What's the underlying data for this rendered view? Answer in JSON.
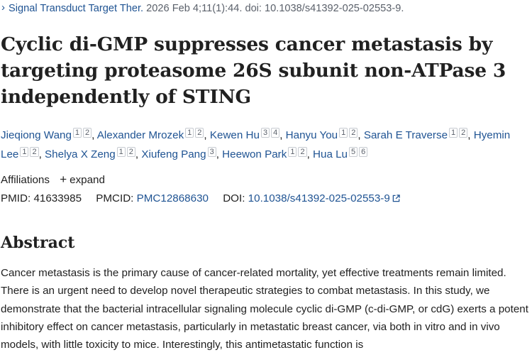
{
  "citation": {
    "journal": "Signal Transduct Target Ther.",
    "details": "2026 Feb 4;11(1):44. doi: 10.1038/s41392-025-02553-9."
  },
  "title": "Cyclic di-GMP suppresses cancer metastasis by targeting proteasome 26S subunit non-ATPase 3 independently of STING",
  "authors": [
    {
      "name": "Jieqiong Wang",
      "affs": [
        "1",
        "2"
      ]
    },
    {
      "name": "Alexander Mrozek",
      "affs": [
        "1",
        "2"
      ]
    },
    {
      "name": "Kewen Hu",
      "affs": [
        "3",
        "4"
      ]
    },
    {
      "name": "Hanyu You",
      "affs": [
        "1",
        "2"
      ]
    },
    {
      "name": "Sarah E Traverse",
      "affs": [
        "1",
        "2"
      ]
    },
    {
      "name": "Hyemin Lee",
      "affs": [
        "1",
        "2"
      ]
    },
    {
      "name": "Shelya X Zeng",
      "affs": [
        "1",
        "2"
      ]
    },
    {
      "name": "Xiufeng Pang",
      "affs": [
        "3"
      ]
    },
    {
      "name": "Heewon Park",
      "affs": [
        "1",
        "2"
      ]
    },
    {
      "name": "Hua Lu",
      "affs": [
        "5",
        "6"
      ]
    }
  ],
  "affiliations": {
    "label": "Affiliations",
    "expand": "expand"
  },
  "ids": {
    "pmid_label": "PMID:",
    "pmid": "41633985",
    "pmcid_label": "PMCID:",
    "pmcid": "PMC12868630",
    "doi_label": "DOI:",
    "doi": "10.1038/s41392-025-02553-9"
  },
  "abstract": {
    "heading": "Abstract",
    "text": "Cancer metastasis is the primary cause of cancer-related mortality, yet effective treatments remain limited. There is an urgent need to develop novel therapeutic strategies to combat metastasis. In this study, we demonstrate that the bacterial intracellular signaling molecule cyclic di-GMP (c-di-GMP, or cdG) exerts a potent inhibitory effect on cancer metastasis, particularly in metastatic breast cancer, via both in vitro and in vivo models, with little toxicity to mice. Interestingly, this antimetastatic function is"
  },
  "colors": {
    "link": "#205493",
    "text": "#212121",
    "muted": "#5b616b"
  },
  "icons": {
    "journal": "chevron-right-icon",
    "affiliations": "plus-icon",
    "doi": "external-link-icon"
  }
}
